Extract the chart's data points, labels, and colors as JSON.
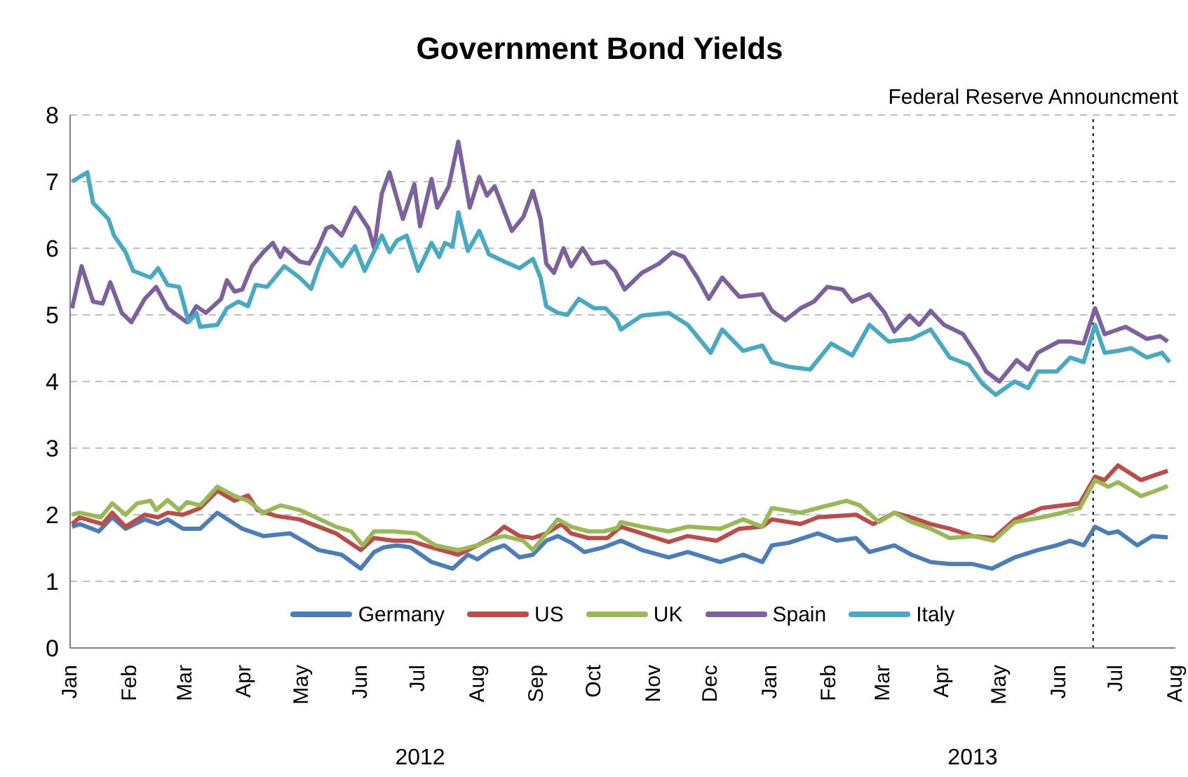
{
  "chart_data": {
    "type": "line",
    "title": "Government Bond Yields",
    "xlim": [
      "2012-01-01",
      "2013-08-01"
    ],
    "xticks": [
      {
        "value": "2012-01-01",
        "label": "Jan"
      },
      {
        "value": "2012-02-01",
        "label": "Feb"
      },
      {
        "value": "2012-03-01",
        "label": "Mar"
      },
      {
        "value": "2012-04-01",
        "label": "Apr"
      },
      {
        "value": "2012-05-01",
        "label": "May"
      },
      {
        "value": "2012-06-01",
        "label": "Jun"
      },
      {
        "value": "2012-07-01",
        "label": "Jul"
      },
      {
        "value": "2012-08-01",
        "label": "Aug"
      },
      {
        "value": "2012-09-01",
        "label": "Sep"
      },
      {
        "value": "2012-10-01",
        "label": "Oct"
      },
      {
        "value": "2012-11-01",
        "label": "Nov"
      },
      {
        "value": "2012-12-01",
        "label": "Dec"
      },
      {
        "value": "2013-01-01",
        "label": "Jan"
      },
      {
        "value": "2013-02-01",
        "label": "Feb"
      },
      {
        "value": "2013-03-01",
        "label": "Mar"
      },
      {
        "value": "2013-04-01",
        "label": "Apr"
      },
      {
        "value": "2013-05-01",
        "label": "May"
      },
      {
        "value": "2013-06-01",
        "label": "Jun"
      },
      {
        "value": "2013-07-01",
        "label": "Jul"
      },
      {
        "value": "2013-08-01",
        "label": "Aug"
      }
    ],
    "ylim": [
      0,
      8
    ],
    "yticks": [
      0,
      1,
      2,
      3,
      4,
      5,
      6,
      7,
      8
    ],
    "grid": "y",
    "legend": "bottom",
    "marker": "none",
    "line_style": "solid",
    "annotations": [
      "2012",
      "2013"
    ],
    "ref_lines": [
      {
        "axis": "x",
        "value": "2013-06-19",
        "label": "Federal Reserve Announcment",
        "color": "#000000",
        "line_style": "dotted"
      }
    ],
    "series": [
      {
        "name": "Germany",
        "color": "#4a7ebb",
        "x": [
          "2012-01-02",
          "2012-01-06",
          "2012-01-16",
          "2012-01-23",
          "2012-01-30",
          "2012-02-09",
          "2012-02-16",
          "2012-02-21",
          "2012-02-29",
          "2012-03-09",
          "2012-03-18",
          "2012-03-31",
          "2012-04-11",
          "2012-04-25",
          "2012-05-10",
          "2012-05-22",
          "2012-06-01",
          "2012-06-08",
          "2012-06-13",
          "2012-06-20",
          "2012-06-27",
          "2012-07-08",
          "2012-07-19",
          "2012-07-27",
          "2012-08-01",
          "2012-08-08",
          "2012-08-15",
          "2012-08-23",
          "2012-08-30",
          "2012-09-06",
          "2012-09-12",
          "2012-09-19",
          "2012-09-26",
          "2012-10-06",
          "2012-10-15",
          "2012-10-26",
          "2012-11-09",
          "2012-11-19",
          "2012-12-06",
          "2012-12-18",
          "2012-12-28",
          "2013-01-02",
          "2013-01-11",
          "2013-01-26",
          "2013-02-05",
          "2013-02-15",
          "2013-02-22",
          "2013-03-07",
          "2013-03-16",
          "2013-03-26",
          "2013-04-05",
          "2013-04-17",
          "2013-04-27",
          "2013-05-09",
          "2013-05-21",
          "2013-05-31",
          "2013-06-07",
          "2013-06-14",
          "2013-06-20",
          "2013-06-27",
          "2013-07-02",
          "2013-07-12",
          "2013-07-20",
          "2013-07-28"
        ],
        "values": [
          1.82,
          1.86,
          1.75,
          1.96,
          1.79,
          1.93,
          1.86,
          1.93,
          1.79,
          1.79,
          2.03,
          1.79,
          1.68,
          1.72,
          1.47,
          1.4,
          1.19,
          1.44,
          1.51,
          1.54,
          1.51,
          1.29,
          1.19,
          1.4,
          1.33,
          1.47,
          1.54,
          1.36,
          1.4,
          1.61,
          1.68,
          1.58,
          1.44,
          1.51,
          1.61,
          1.47,
          1.36,
          1.44,
          1.29,
          1.4,
          1.29,
          1.54,
          1.58,
          1.72,
          1.61,
          1.65,
          1.44,
          1.54,
          1.4,
          1.29,
          1.26,
          1.26,
          1.19,
          1.36,
          1.47,
          1.54,
          1.61,
          1.54,
          1.82,
          1.72,
          1.75,
          1.54,
          1.68,
          1.66
        ]
      },
      {
        "name": "US",
        "color": "#be4b48",
        "x": [
          "2012-01-02",
          "2012-01-06",
          "2012-01-18",
          "2012-01-23",
          "2012-01-30",
          "2012-02-09",
          "2012-02-16",
          "2012-02-21",
          "2012-02-29",
          "2012-03-09",
          "2012-03-18",
          "2012-03-27",
          "2012-04-03",
          "2012-04-08",
          "2012-04-18",
          "2012-04-30",
          "2012-05-10",
          "2012-05-19",
          "2012-06-01",
          "2012-06-08",
          "2012-06-18",
          "2012-06-27",
          "2012-07-08",
          "2012-07-22",
          "2012-08-01",
          "2012-08-08",
          "2012-08-15",
          "2012-08-23",
          "2012-08-30",
          "2012-09-06",
          "2012-09-14",
          "2012-09-19",
          "2012-09-28",
          "2012-10-08",
          "2012-10-15",
          "2012-10-26",
          "2012-11-09",
          "2012-11-19",
          "2012-12-04",
          "2012-12-16",
          "2012-12-28",
          "2013-01-02",
          "2013-01-17",
          "2013-01-26",
          "2013-02-15",
          "2013-02-24",
          "2013-03-07",
          "2013-03-16",
          "2013-03-26",
          "2013-04-05",
          "2013-04-17",
          "2013-04-28",
          "2013-05-09",
          "2013-05-23",
          "2013-06-03",
          "2013-06-12",
          "2013-06-20",
          "2013-06-25",
          "2013-07-02",
          "2013-07-14",
          "2013-07-21",
          "2013-07-28"
        ],
        "values": [
          1.86,
          1.96,
          1.86,
          2.03,
          1.82,
          2.0,
          1.96,
          2.03,
          2.0,
          2.1,
          2.36,
          2.21,
          2.29,
          2.07,
          1.98,
          1.93,
          1.82,
          1.72,
          1.47,
          1.65,
          1.61,
          1.61,
          1.51,
          1.4,
          1.54,
          1.65,
          1.82,
          1.68,
          1.65,
          1.72,
          1.86,
          1.72,
          1.65,
          1.65,
          1.82,
          1.72,
          1.59,
          1.68,
          1.61,
          1.79,
          1.82,
          1.93,
          1.86,
          1.96,
          2.0,
          1.86,
          2.03,
          1.96,
          1.86,
          1.79,
          1.68,
          1.65,
          1.93,
          2.1,
          2.14,
          2.17,
          2.57,
          2.52,
          2.74,
          2.52,
          2.59,
          2.66
        ]
      },
      {
        "name": "UK",
        "color": "#98b954",
        "x": [
          "2012-01-02",
          "2012-01-06",
          "2012-01-17",
          "2012-01-23",
          "2012-01-30",
          "2012-02-05",
          "2012-02-12",
          "2012-02-15",
          "2012-02-21",
          "2012-02-27",
          "2012-03-02",
          "2012-03-09",
          "2012-03-18",
          "2012-03-27",
          "2012-04-03",
          "2012-04-11",
          "2012-04-20",
          "2012-04-30",
          "2012-05-10",
          "2012-05-19",
          "2012-05-27",
          "2012-06-02",
          "2012-06-08",
          "2012-06-18",
          "2012-06-30",
          "2012-07-10",
          "2012-07-22",
          "2012-08-01",
          "2012-08-10",
          "2012-08-15",
          "2012-08-25",
          "2012-08-30",
          "2012-09-04",
          "2012-09-12",
          "2012-09-19",
          "2012-09-28",
          "2012-10-06",
          "2012-10-13",
          "2012-10-15",
          "2012-10-26",
          "2012-11-09",
          "2012-11-19",
          "2012-12-06",
          "2012-12-18",
          "2012-12-28",
          "2013-01-02",
          "2013-01-17",
          "2013-01-26",
          "2013-02-10",
          "2013-02-17",
          "2013-02-27",
          "2013-03-07",
          "2013-03-16",
          "2013-03-26",
          "2013-04-05",
          "2013-04-17",
          "2013-04-28",
          "2013-05-09",
          "2013-05-23",
          "2013-06-03",
          "2013-06-12",
          "2013-06-20",
          "2013-06-27",
          "2013-07-02",
          "2013-07-14",
          "2013-07-21",
          "2013-07-28"
        ],
        "values": [
          2.0,
          2.03,
          1.96,
          2.17,
          2.0,
          2.17,
          2.21,
          2.07,
          2.22,
          2.07,
          2.19,
          2.14,
          2.42,
          2.28,
          2.21,
          2.03,
          2.14,
          2.07,
          1.94,
          1.82,
          1.75,
          1.54,
          1.75,
          1.75,
          1.72,
          1.54,
          1.47,
          1.54,
          1.65,
          1.68,
          1.61,
          1.47,
          1.65,
          1.93,
          1.82,
          1.75,
          1.75,
          1.8,
          1.89,
          1.82,
          1.75,
          1.82,
          1.79,
          1.93,
          1.82,
          2.1,
          2.03,
          2.1,
          2.21,
          2.14,
          1.89,
          2.03,
          1.89,
          1.79,
          1.65,
          1.68,
          1.61,
          1.89,
          1.96,
          2.03,
          2.1,
          2.52,
          2.42,
          2.49,
          2.28,
          2.35,
          2.43
        ]
      },
      {
        "name": "Spain",
        "color": "#7d60a0",
        "x": [
          "2012-01-02",
          "2012-01-07",
          "2012-01-13",
          "2012-01-18",
          "2012-01-22",
          "2012-01-28",
          "2012-02-02",
          "2012-02-09",
          "2012-02-15",
          "2012-02-21",
          "2012-03-02",
          "2012-03-07",
          "2012-03-12",
          "2012-03-20",
          "2012-03-23",
          "2012-03-27",
          "2012-03-31",
          "2012-04-05",
          "2012-04-11",
          "2012-04-16",
          "2012-04-20",
          "2012-04-22",
          "2012-04-30",
          "2012-05-05",
          "2012-05-10",
          "2012-05-14",
          "2012-05-17",
          "2012-05-22",
          "2012-05-29",
          "2012-06-05",
          "2012-06-08",
          "2012-06-12",
          "2012-06-16",
          "2012-06-23",
          "2012-06-29",
          "2012-07-02",
          "2012-07-08",
          "2012-07-11",
          "2012-07-17",
          "2012-07-22",
          "2012-07-28",
          "2012-08-02",
          "2012-08-06",
          "2012-08-10",
          "2012-08-19",
          "2012-08-25",
          "2012-08-30",
          "2012-09-03",
          "2012-09-06",
          "2012-09-10",
          "2012-09-15",
          "2012-09-19",
          "2012-09-25",
          "2012-09-30",
          "2012-10-07",
          "2012-10-12",
          "2012-10-17",
          "2012-10-26",
          "2012-11-04",
          "2012-11-11",
          "2012-11-17",
          "2012-11-24",
          "2012-11-30",
          "2012-12-07",
          "2012-12-16",
          "2012-12-28",
          "2013-01-02",
          "2013-01-09",
          "2013-01-17",
          "2013-01-24",
          "2013-01-31",
          "2013-02-08",
          "2013-02-13",
          "2013-02-22",
          "2013-03-02",
          "2013-03-07",
          "2013-03-15",
          "2013-03-20",
          "2013-03-26",
          "2013-04-02",
          "2013-04-12",
          "2013-04-20",
          "2013-04-24",
          "2013-05-01",
          "2013-05-10",
          "2013-05-16",
          "2013-05-21",
          "2013-06-01",
          "2013-06-07",
          "2013-06-14",
          "2013-06-20",
          "2013-06-25",
          "2013-06-29",
          "2013-07-06",
          "2013-07-17",
          "2013-07-24",
          "2013-07-28"
        ],
        "values": [
          5.1,
          5.73,
          5.2,
          5.17,
          5.49,
          5.03,
          4.89,
          5.24,
          5.42,
          5.1,
          4.89,
          5.13,
          5.03,
          5.24,
          5.52,
          5.35,
          5.38,
          5.73,
          5.94,
          6.08,
          5.87,
          6.0,
          5.8,
          5.77,
          6.03,
          6.3,
          6.33,
          6.19,
          6.61,
          6.3,
          6.0,
          6.82,
          7.14,
          6.44,
          6.96,
          6.33,
          7.04,
          6.61,
          6.93,
          7.6,
          6.61,
          7.07,
          6.79,
          6.93,
          6.26,
          6.47,
          6.86,
          6.44,
          5.77,
          5.63,
          6.0,
          5.73,
          6.0,
          5.77,
          5.8,
          5.66,
          5.38,
          5.63,
          5.77,
          5.94,
          5.87,
          5.56,
          5.24,
          5.56,
          5.27,
          5.31,
          5.06,
          4.92,
          5.1,
          5.2,
          5.42,
          5.38,
          5.2,
          5.31,
          5.03,
          4.75,
          4.99,
          4.85,
          5.06,
          4.85,
          4.71,
          4.36,
          4.15,
          4.0,
          4.32,
          4.18,
          4.43,
          4.6,
          4.6,
          4.57,
          5.1,
          4.71,
          4.75,
          4.82,
          4.64,
          4.68,
          4.6
        ]
      },
      {
        "name": "Italy",
        "color": "#46aac5",
        "x": [
          "2012-01-02",
          "2012-01-10",
          "2012-01-13",
          "2012-01-21",
          "2012-01-24",
          "2012-01-30",
          "2012-02-03",
          "2012-02-12",
          "2012-02-16",
          "2012-02-21",
          "2012-02-27",
          "2012-03-03",
          "2012-03-07",
          "2012-03-09",
          "2012-03-18",
          "2012-03-23",
          "2012-03-29",
          "2012-04-03",
          "2012-04-07",
          "2012-04-13",
          "2012-04-22",
          "2012-04-30",
          "2012-05-06",
          "2012-05-10",
          "2012-05-14",
          "2012-05-22",
          "2012-05-29",
          "2012-06-03",
          "2012-06-12",
          "2012-06-16",
          "2012-06-20",
          "2012-06-25",
          "2012-07-01",
          "2012-07-08",
          "2012-07-12",
          "2012-07-15",
          "2012-07-19",
          "2012-07-22",
          "2012-07-27",
          "2012-08-02",
          "2012-08-07",
          "2012-08-15",
          "2012-08-23",
          "2012-08-30",
          "2012-09-03",
          "2012-09-06",
          "2012-09-12",
          "2012-09-17",
          "2012-09-23",
          "2012-10-01",
          "2012-10-07",
          "2012-10-13",
          "2012-10-15",
          "2012-10-26",
          "2012-11-09",
          "2012-11-19",
          "2012-12-01",
          "2012-12-07",
          "2012-12-18",
          "2012-12-28",
          "2013-01-02",
          "2013-01-11",
          "2013-01-22",
          "2013-02-02",
          "2013-02-13",
          "2013-02-22",
          "2013-03-04",
          "2013-03-16",
          "2013-03-26",
          "2013-04-05",
          "2013-04-15",
          "2013-04-22",
          "2013-04-29",
          "2013-05-09",
          "2013-05-16",
          "2013-05-21",
          "2013-05-31",
          "2013-06-07",
          "2013-06-14",
          "2013-06-20",
          "2013-06-25",
          "2013-07-02",
          "2013-07-09",
          "2013-07-17",
          "2013-07-25",
          "2013-07-29"
        ],
        "values": [
          7.0,
          7.14,
          6.68,
          6.44,
          6.19,
          5.94,
          5.66,
          5.56,
          5.7,
          5.45,
          5.42,
          4.89,
          5.03,
          4.82,
          4.85,
          5.1,
          5.2,
          5.13,
          5.45,
          5.42,
          5.73,
          5.56,
          5.39,
          5.73,
          6.0,
          5.73,
          6.03,
          5.66,
          6.19,
          5.94,
          6.12,
          6.19,
          5.66,
          6.08,
          5.87,
          6.08,
          6.03,
          6.54,
          5.96,
          6.26,
          5.91,
          5.8,
          5.7,
          5.84,
          5.56,
          5.13,
          5.03,
          5.0,
          5.24,
          5.1,
          5.1,
          4.92,
          4.78,
          4.99,
          5.03,
          4.85,
          4.43,
          4.78,
          4.46,
          4.54,
          4.29,
          4.22,
          4.18,
          4.57,
          4.39,
          4.85,
          4.6,
          4.64,
          4.78,
          4.36,
          4.25,
          3.97,
          3.8,
          4.0,
          3.9,
          4.15,
          4.15,
          4.36,
          4.29,
          4.85,
          4.43,
          4.46,
          4.5,
          4.36,
          4.43,
          4.29
        ]
      }
    ]
  }
}
